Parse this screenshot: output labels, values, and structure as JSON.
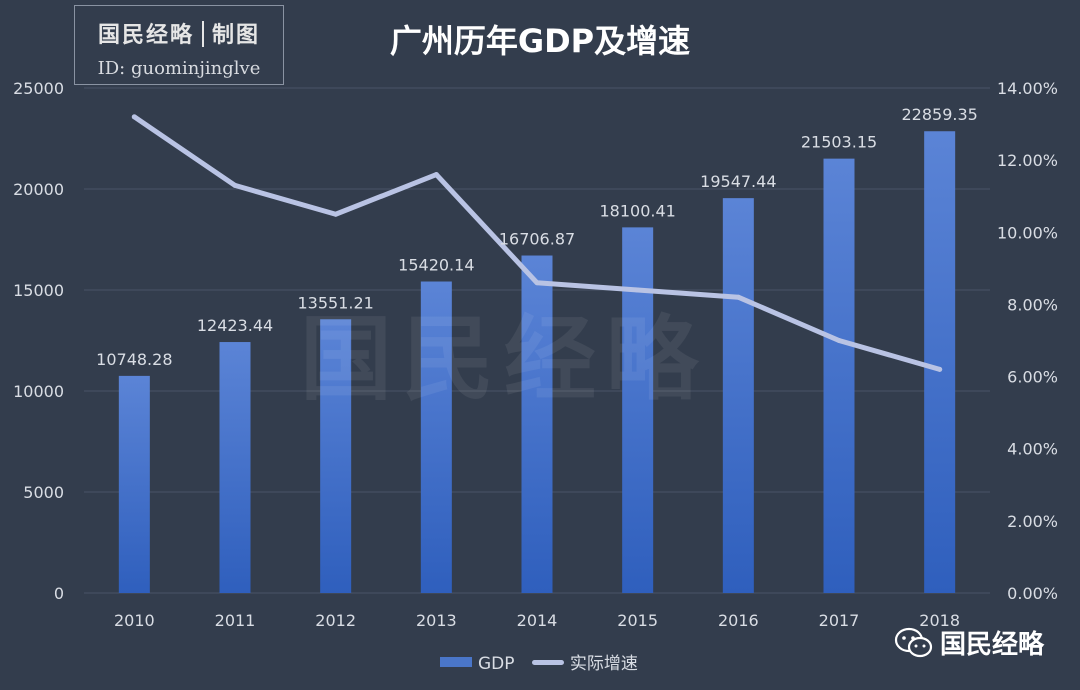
{
  "brand": {
    "name": "国民经略",
    "tag": "制图",
    "id_line": "ID:  guominjinglve"
  },
  "watermark": "国民经略",
  "wechat": {
    "label": "国民经略",
    "icon": "wechat-icon"
  },
  "colors": {
    "background": "#333d4d",
    "bar_top": "#5b84d6",
    "bar_bottom": "#2f5fbd",
    "line": "#b9c3e4",
    "grid": "#4a5466",
    "text": "#d9dde4"
  },
  "chart_data": {
    "type": "bar",
    "title": "广州历年GDP及增速",
    "categories": [
      "2010",
      "2011",
      "2012",
      "2013",
      "2014",
      "2015",
      "2016",
      "2017",
      "2018"
    ],
    "series": [
      {
        "name": "GDP",
        "type": "bar",
        "axis": "left",
        "values": [
          10748.28,
          12423.44,
          13551.21,
          15420.14,
          16706.87,
          18100.41,
          19547.44,
          21503.15,
          22859.35
        ],
        "labels": [
          "10748.28",
          "12423.44",
          "13551.21",
          "15420.14",
          "16706.87",
          "18100.41",
          "19547.44",
          "21503.15",
          "22859.35"
        ]
      },
      {
        "name": "实际增速",
        "type": "line",
        "axis": "right",
        "values": [
          13.2,
          11.3,
          10.5,
          11.6,
          8.6,
          8.4,
          8.2,
          7.0,
          6.2
        ]
      }
    ],
    "y_left": {
      "min": 0,
      "max": 25000,
      "ticks": [
        "0",
        "5000",
        "10000",
        "15000",
        "20000",
        "25000"
      ]
    },
    "y_right": {
      "min": 0,
      "max": 14,
      "ticks": [
        "0.00%",
        "2.00%",
        "4.00%",
        "6.00%",
        "8.00%",
        "10.00%",
        "12.00%",
        "14.00%"
      ]
    },
    "grid": true,
    "legend": "bottom"
  }
}
